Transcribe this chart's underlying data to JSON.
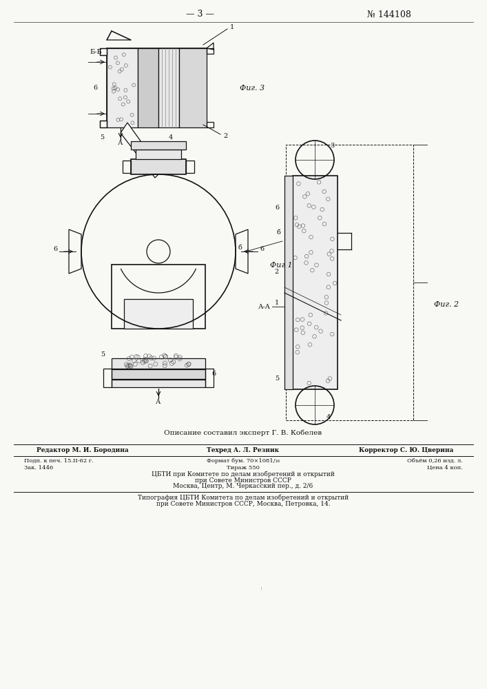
{
  "background_color": "#f8f8f5",
  "page_number_text": "— 3 —",
  "patent_number_text": "№ 144108",
  "fig1_label": "Фиг 1",
  "fig2_label": "Фиг. 2",
  "fig3_label": "Фиг. 3",
  "caption_text": "Описание составил эксперт Г. В. Кобелев"
}
